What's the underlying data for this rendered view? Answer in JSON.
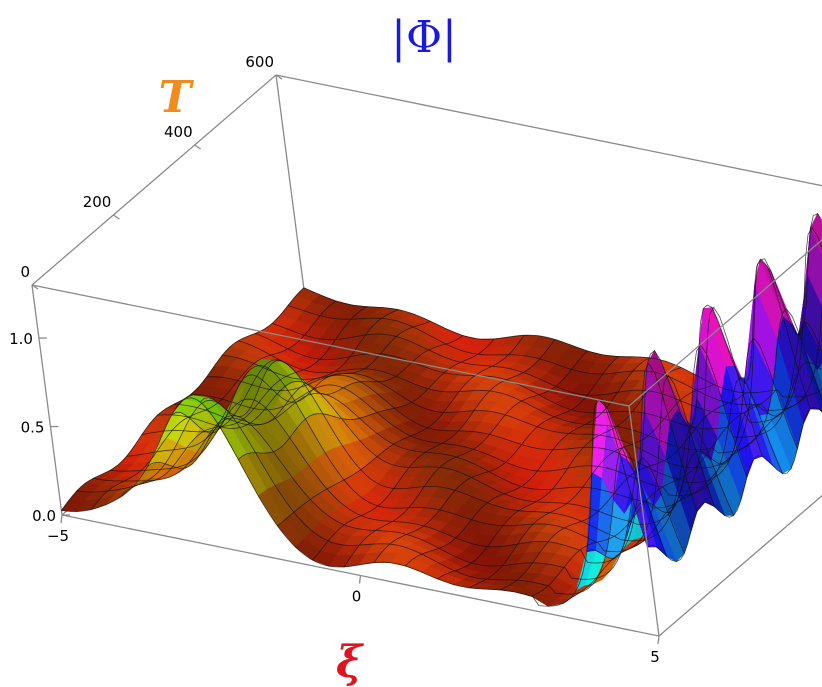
{
  "chart_data": {
    "type": "surface3d",
    "title": "|Φ|",
    "title_color": "#1a1adf",
    "xlabel": "ξ",
    "xlabel_color": "#e0141e",
    "ylabel": "T",
    "ylabel_color": "#f08c1e",
    "zlabel": "",
    "x_range": [
      -5,
      5
    ],
    "y_range": [
      0,
      600
    ],
    "z_range": [
      0,
      1.3
    ],
    "x_ticks": [
      -5,
      0,
      5
    ],
    "y_ticks": [
      0,
      200,
      400,
      600
    ],
    "z_ticks": [
      0.0,
      0.5,
      1.0
    ],
    "x_tick_labels": [
      "−5",
      "0",
      "5"
    ],
    "y_tick_labels": [
      "0",
      "200",
      "400",
      "600"
    ],
    "z_tick_labels": [
      "0.0",
      "0.5",
      "1.0"
    ],
    "mesh": {
      "x_lines": 19,
      "y_lines": 15
    },
    "features": [
      {
        "description": "soliton near xi=5",
        "x_center": 4.5,
        "peak": 1.3,
        "width": 0.3,
        "oscillating_in_T": true
      },
      {
        "description": "hump near xi=-2.5 at low T",
        "x_center": -2.5,
        "peak": 0.85,
        "width": 0.9
      },
      {
        "description": "background ripples",
        "amplitude": 0.12
      }
    ]
  }
}
